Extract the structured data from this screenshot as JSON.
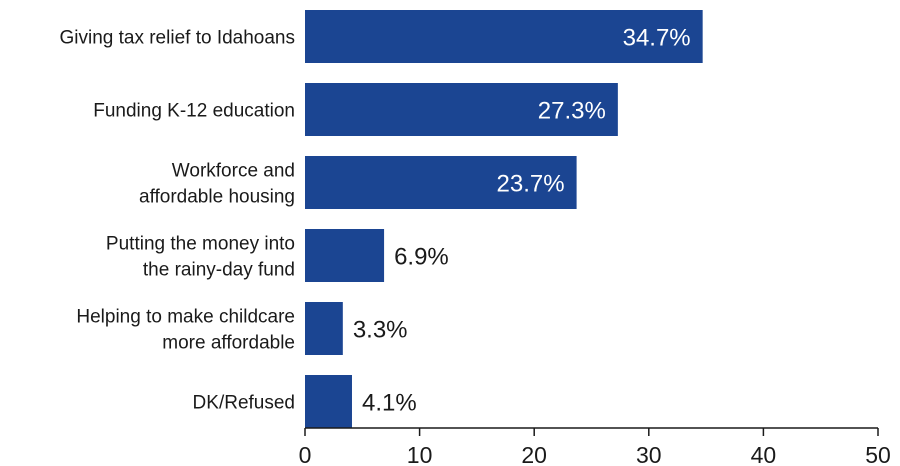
{
  "chart_data": {
    "type": "bar",
    "orientation": "horizontal",
    "title": "",
    "xlabel": "",
    "ylabel": "",
    "categories": [
      [
        "Giving tax relief to Idahoans"
      ],
      [
        "Funding K-12 education"
      ],
      [
        "Workforce and",
        "affordable housing"
      ],
      [
        "Putting the money into",
        "the rainy-day fund"
      ],
      [
        "Helping to make childcare",
        "more affordable"
      ],
      [
        "DK/Refused"
      ]
    ],
    "values": [
      34.7,
      27.3,
      23.7,
      6.9,
      3.3,
      4.1
    ],
    "value_labels": [
      "34.7%",
      "27.3%",
      "23.7%",
      "6.9%",
      "3.3%",
      "4.1%"
    ],
    "xlim": [
      0,
      50
    ],
    "xticks": [
      0,
      10,
      20,
      30,
      40,
      50
    ],
    "grid": false,
    "legend": "none",
    "colors": {
      "bar": "#1b4592",
      "label_inside": "#ffffff",
      "label_outside": "#1a1a1a",
      "axis": "#1a1a1a"
    }
  }
}
